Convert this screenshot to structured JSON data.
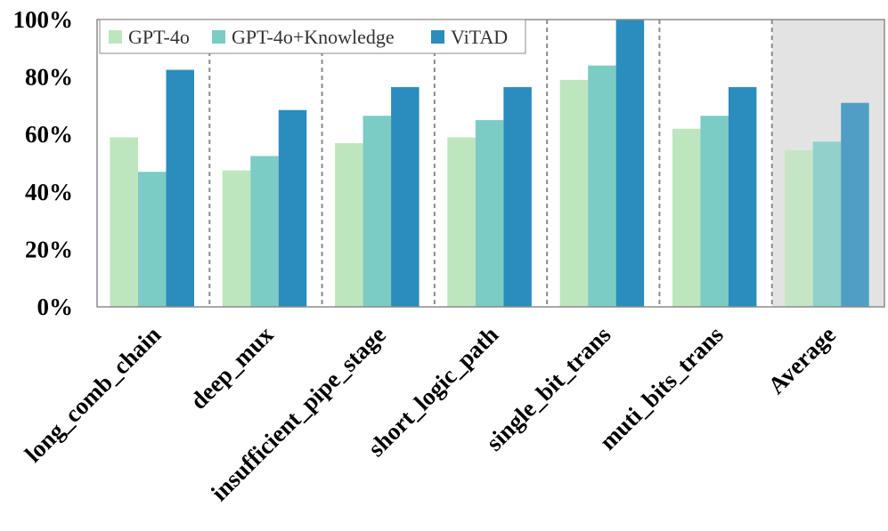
{
  "chart_data": {
    "type": "bar",
    "title": "",
    "xlabel": "",
    "ylabel": "",
    "ylim": [
      0,
      100
    ],
    "yticks": [
      0,
      20,
      40,
      60,
      80,
      100
    ],
    "ytick_labels": [
      "0%",
      "20%",
      "40%",
      "60%",
      "80%",
      "100%"
    ],
    "grid": false,
    "legend_position": "top-left",
    "highlighted_category": "Average",
    "highlight_color": "#e3e3e3",
    "categories": [
      "long_comb_chain",
      "deep_mux",
      "insufficient_pipe_stage",
      "short_logic_path",
      "single_bit_trans",
      "muti_bits_trans",
      "Average"
    ],
    "series": [
      {
        "name": "GPT-4o",
        "color": "#bde6be",
        "values": [
          59,
          47.5,
          57,
          59,
          79,
          62,
          54.5
        ]
      },
      {
        "name": "GPT-4o+Knowledge",
        "color": "#7bccc4",
        "values": [
          47,
          52.5,
          66.5,
          65,
          84,
          66.5,
          57.5
        ]
      },
      {
        "name": "ViTAD",
        "color": "#2b8cbe",
        "values": [
          82.5,
          68.5,
          76.5,
          76.5,
          100,
          76.5,
          71
        ]
      }
    ]
  }
}
